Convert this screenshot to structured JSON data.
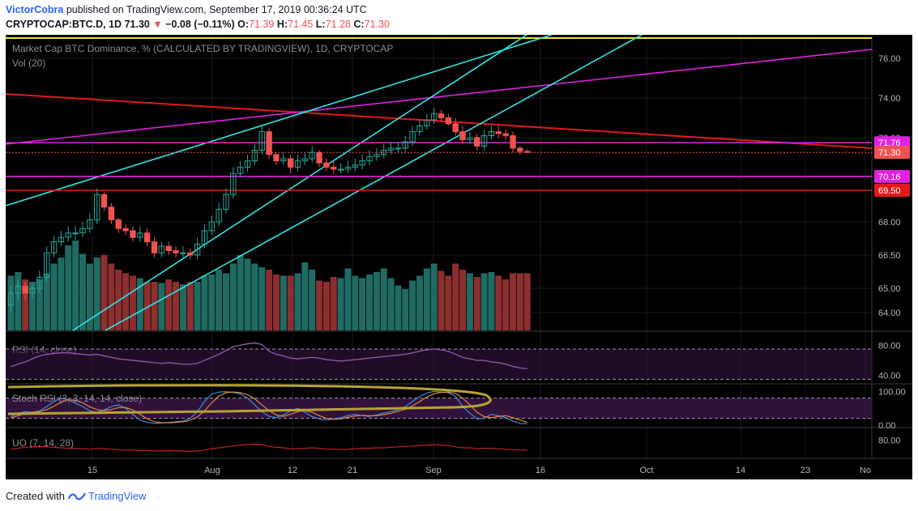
{
  "header": {
    "author": "VictorCobra",
    "published_text": "published on TradingView.com, September 17, 2019 00:36:24 UTC",
    "symbol": "CRYPTOCAP:BTC.D, 1D",
    "last": "71.30",
    "change": "−0.08 (−0.11%)",
    "o_label": "O:",
    "o": "71.39",
    "h_label": "H:",
    "h": "71.45",
    "l_label": "L:",
    "l": "71.28",
    "c_label": "C:",
    "c": "71.30"
  },
  "footer": {
    "created_with": "Created with",
    "brand": "TradingView"
  },
  "colors": {
    "up": "#26a69a",
    "down": "#ef5350",
    "vol_up": "#1f6b63",
    "vol_down": "#8c2f30",
    "cyan": "#2ee6e6",
    "magenta": "#e022e0",
    "red": "#e01a1a",
    "yellow": "#f0e040",
    "rsi": "#8e5fb0",
    "stoch_k": "#3d8fe0",
    "stoch_d": "#e0883a",
    "uo": "#c02020",
    "gold": "#b8a430",
    "band": "#3a1545"
  },
  "chart_data": [
    {
      "type": "candlestick",
      "title": "Market Cap BTC Dominance, % (CALCULATED BY TRADINGVIEW), 1D, CRYPTOCAP",
      "ylabel": "",
      "ylim": [
        63.2,
        76.7
      ],
      "y_ticks": [
        "76.00",
        "74.00",
        "72.00",
        "68.00",
        "66.50",
        "65.00",
        "64.00"
      ],
      "x_ticks": [
        "15",
        "Aug",
        "12",
        "21",
        "Sep",
        "16",
        "Oct",
        "14",
        "23",
        "No"
      ],
      "price_tags": [
        {
          "value": 71.76,
          "label": "71.76",
          "color": "#e022e0"
        },
        {
          "value": 71.3,
          "label": "71.30",
          "color": "#ef5350"
        },
        {
          "value": 70.16,
          "label": "70.16",
          "color": "#e022e0"
        },
        {
          "value": 69.5,
          "label": "69.50",
          "color": "#e01a1a"
        }
      ],
      "candles": {
        "open": [
          64.3,
          64.8,
          65.1,
          64.8,
          65.0,
          65.5,
          66.6,
          67.1,
          67.3,
          67.5,
          67.5,
          67.7,
          68.1,
          69.3,
          68.7,
          68.1,
          67.7,
          67.6,
          67.3,
          67.5,
          67.1,
          66.6,
          66.9,
          66.7,
          66.6,
          66.6,
          66.5,
          67.0,
          67.6,
          68.0,
          68.6,
          69.3,
          70.3,
          70.6,
          70.9,
          71.4,
          72.3,
          71.2,
          70.9,
          71.0,
          70.6,
          70.9,
          71.0,
          71.3,
          70.8,
          70.6,
          70.5,
          70.5,
          70.6,
          70.7,
          70.9,
          71.1,
          71.2,
          71.4,
          71.5,
          71.5,
          71.8,
          72.3,
          72.6,
          72.9,
          73.2,
          73.0,
          72.7,
          72.3,
          71.9,
          72.0,
          71.6,
          72.1,
          72.3,
          72.2,
          72.1,
          71.5,
          71.35
        ],
        "close": [
          64.8,
          65.1,
          64.8,
          65.0,
          65.5,
          66.6,
          67.1,
          67.3,
          67.5,
          67.5,
          67.7,
          68.1,
          69.3,
          68.7,
          68.1,
          67.7,
          67.6,
          67.3,
          67.5,
          67.1,
          66.6,
          66.9,
          66.7,
          66.6,
          66.6,
          66.5,
          67.0,
          67.6,
          68.0,
          68.6,
          69.3,
          70.3,
          70.6,
          70.9,
          71.4,
          72.3,
          71.2,
          70.9,
          71.0,
          70.6,
          70.9,
          71.0,
          71.3,
          70.8,
          70.6,
          70.5,
          70.5,
          70.6,
          70.7,
          70.9,
          71.1,
          71.2,
          71.4,
          71.5,
          71.5,
          71.8,
          72.3,
          72.6,
          72.9,
          73.2,
          73.0,
          72.7,
          72.3,
          71.9,
          72.0,
          71.6,
          72.1,
          72.3,
          72.2,
          72.1,
          71.5,
          71.35,
          71.3
        ],
        "high": [
          65.1,
          65.4,
          65.3,
          65.2,
          65.8,
          66.9,
          67.4,
          67.6,
          67.8,
          67.8,
          68.0,
          68.4,
          69.6,
          69.4,
          68.9,
          68.2,
          67.9,
          67.8,
          67.8,
          67.7,
          67.3,
          67.1,
          67.1,
          66.9,
          66.9,
          66.8,
          67.3,
          67.9,
          68.3,
          68.9,
          69.6,
          70.6,
          70.9,
          71.2,
          71.7,
          72.6,
          72.5,
          71.3,
          71.3,
          71.2,
          71.2,
          71.3,
          71.6,
          71.4,
          71.0,
          70.9,
          70.8,
          70.9,
          71.0,
          71.2,
          71.4,
          71.5,
          71.7,
          71.8,
          71.8,
          72.1,
          72.6,
          72.9,
          73.2,
          73.5,
          73.4,
          73.2,
          73.0,
          72.6,
          72.3,
          72.2,
          72.4,
          72.6,
          72.6,
          72.4,
          72.3,
          71.6,
          71.45
        ],
        "low": [
          64.0,
          64.5,
          64.5,
          64.6,
          64.8,
          65.3,
          66.4,
          66.9,
          67.1,
          67.2,
          67.3,
          67.5,
          67.9,
          68.5,
          67.9,
          67.5,
          67.4,
          67.1,
          67.1,
          66.9,
          66.4,
          66.4,
          66.5,
          66.4,
          66.4,
          66.3,
          66.3,
          66.8,
          67.4,
          67.8,
          68.4,
          69.1,
          70.1,
          70.4,
          70.7,
          71.2,
          71.0,
          70.7,
          70.7,
          70.3,
          70.4,
          70.7,
          70.8,
          70.6,
          70.4,
          70.3,
          70.3,
          70.3,
          70.4,
          70.5,
          70.7,
          70.9,
          71.0,
          71.2,
          71.3,
          71.3,
          71.6,
          72.1,
          72.4,
          72.7,
          72.8,
          72.6,
          72.1,
          71.7,
          71.7,
          71.4,
          71.4,
          71.9,
          72.0,
          71.9,
          71.3,
          71.2,
          71.28
        ]
      },
      "volume_rel": [
        0.45,
        0.48,
        0.42,
        0.4,
        0.42,
        0.47,
        0.55,
        0.6,
        0.7,
        0.74,
        0.63,
        0.55,
        0.6,
        0.62,
        0.55,
        0.5,
        0.47,
        0.45,
        0.43,
        0.4,
        0.4,
        0.39,
        0.42,
        0.4,
        0.38,
        0.4,
        0.4,
        0.45,
        0.46,
        0.5,
        0.47,
        0.55,
        0.62,
        0.59,
        0.55,
        0.52,
        0.5,
        0.46,
        0.45,
        0.45,
        0.47,
        0.56,
        0.5,
        0.41,
        0.4,
        0.44,
        0.43,
        0.51,
        0.45,
        0.43,
        0.46,
        0.48,
        0.51,
        0.43,
        0.37,
        0.34,
        0.41,
        0.45,
        0.51,
        0.55,
        0.49,
        0.45,
        0.55,
        0.5,
        0.47,
        0.44,
        0.47,
        0.48,
        0.45,
        0.42,
        0.47,
        0.47,
        0.47
      ]
    },
    {
      "type": "line",
      "title": "RSI (14, close)",
      "ylim": [
        30,
        90
      ],
      "y_ticks": [
        "80.00",
        "40.00"
      ],
      "series": [
        {
          "values": [
            52,
            55,
            58,
            62,
            66,
            68,
            69,
            70,
            70,
            69,
            68,
            67,
            68,
            66,
            64,
            62,
            61,
            60,
            59,
            58,
            57,
            56,
            57,
            56,
            55,
            55,
            56,
            60,
            64,
            68,
            73,
            78,
            80,
            82,
            83,
            81,
            72,
            68,
            66,
            63,
            62,
            63,
            64,
            63,
            61,
            60,
            59,
            60,
            61,
            62,
            63,
            64,
            65,
            66,
            67,
            68,
            70,
            72,
            74,
            75,
            74,
            72,
            68,
            64,
            62,
            60,
            60,
            58,
            57,
            55,
            52,
            50,
            49
          ]
        }
      ]
    },
    {
      "type": "line",
      "title": "Stoch RSI (3, 3, 14, 14, close)",
      "ylim": [
        -5,
        115
      ],
      "y_ticks": [
        "100.00",
        "0.00"
      ],
      "series": [
        {
          "values": [
            25,
            35,
            40,
            38,
            42,
            55,
            70,
            80,
            75,
            65,
            55,
            42,
            38,
            45,
            55,
            60,
            50,
            32,
            15,
            8,
            5,
            6,
            8,
            10,
            12,
            20,
            40,
            70,
            92,
            98,
            99,
            97,
            92,
            80,
            60,
            40,
            26,
            22,
            30,
            42,
            50,
            38,
            25,
            18,
            15,
            18,
            22,
            28,
            32,
            28,
            26,
            30,
            36,
            40,
            46,
            55,
            70,
            85,
            95,
            100,
            98,
            96,
            86,
            55,
            35,
            18,
            20,
            32,
            28,
            22,
            12,
            5,
            4
          ]
        },
        {
          "values": [
            22,
            28,
            35,
            38,
            40,
            46,
            56,
            68,
            75,
            74,
            66,
            54,
            46,
            43,
            46,
            52,
            52,
            45,
            32,
            18,
            10,
            7,
            7,
            8,
            10,
            14,
            24,
            42,
            66,
            86,
            96,
            98,
            96,
            90,
            78,
            60,
            43,
            30,
            26,
            32,
            40,
            43,
            38,
            28,
            20,
            17,
            18,
            23,
            27,
            29,
            28,
            28,
            31,
            35,
            41,
            47,
            57,
            70,
            83,
            93,
            97,
            98,
            94,
            80,
            60,
            38,
            25,
            22,
            26,
            28,
            22,
            15,
            8
          ]
        }
      ]
    },
    {
      "type": "line",
      "title": "UO (7, 14, 28)",
      "ylim": [
        40,
        100
      ],
      "y_ticks": [
        "80.00"
      ],
      "series": [
        {
          "values": [
            60,
            62,
            64,
            65,
            66,
            65,
            64,
            63,
            62,
            62,
            61,
            60,
            62,
            61,
            60,
            59,
            58,
            58,
            57,
            57,
            56,
            56,
            57,
            56,
            56,
            55,
            56,
            58,
            61,
            63,
            65,
            67,
            69,
            70,
            71,
            70,
            66,
            64,
            63,
            61,
            61,
            62,
            63,
            62,
            60,
            60,
            59,
            60,
            61,
            62,
            62,
            63,
            63,
            64,
            65,
            66,
            67,
            68,
            69,
            70,
            69,
            68,
            65,
            63,
            63,
            61,
            62,
            62,
            61,
            60,
            59,
            58,
            58
          ]
        }
      ]
    }
  ]
}
